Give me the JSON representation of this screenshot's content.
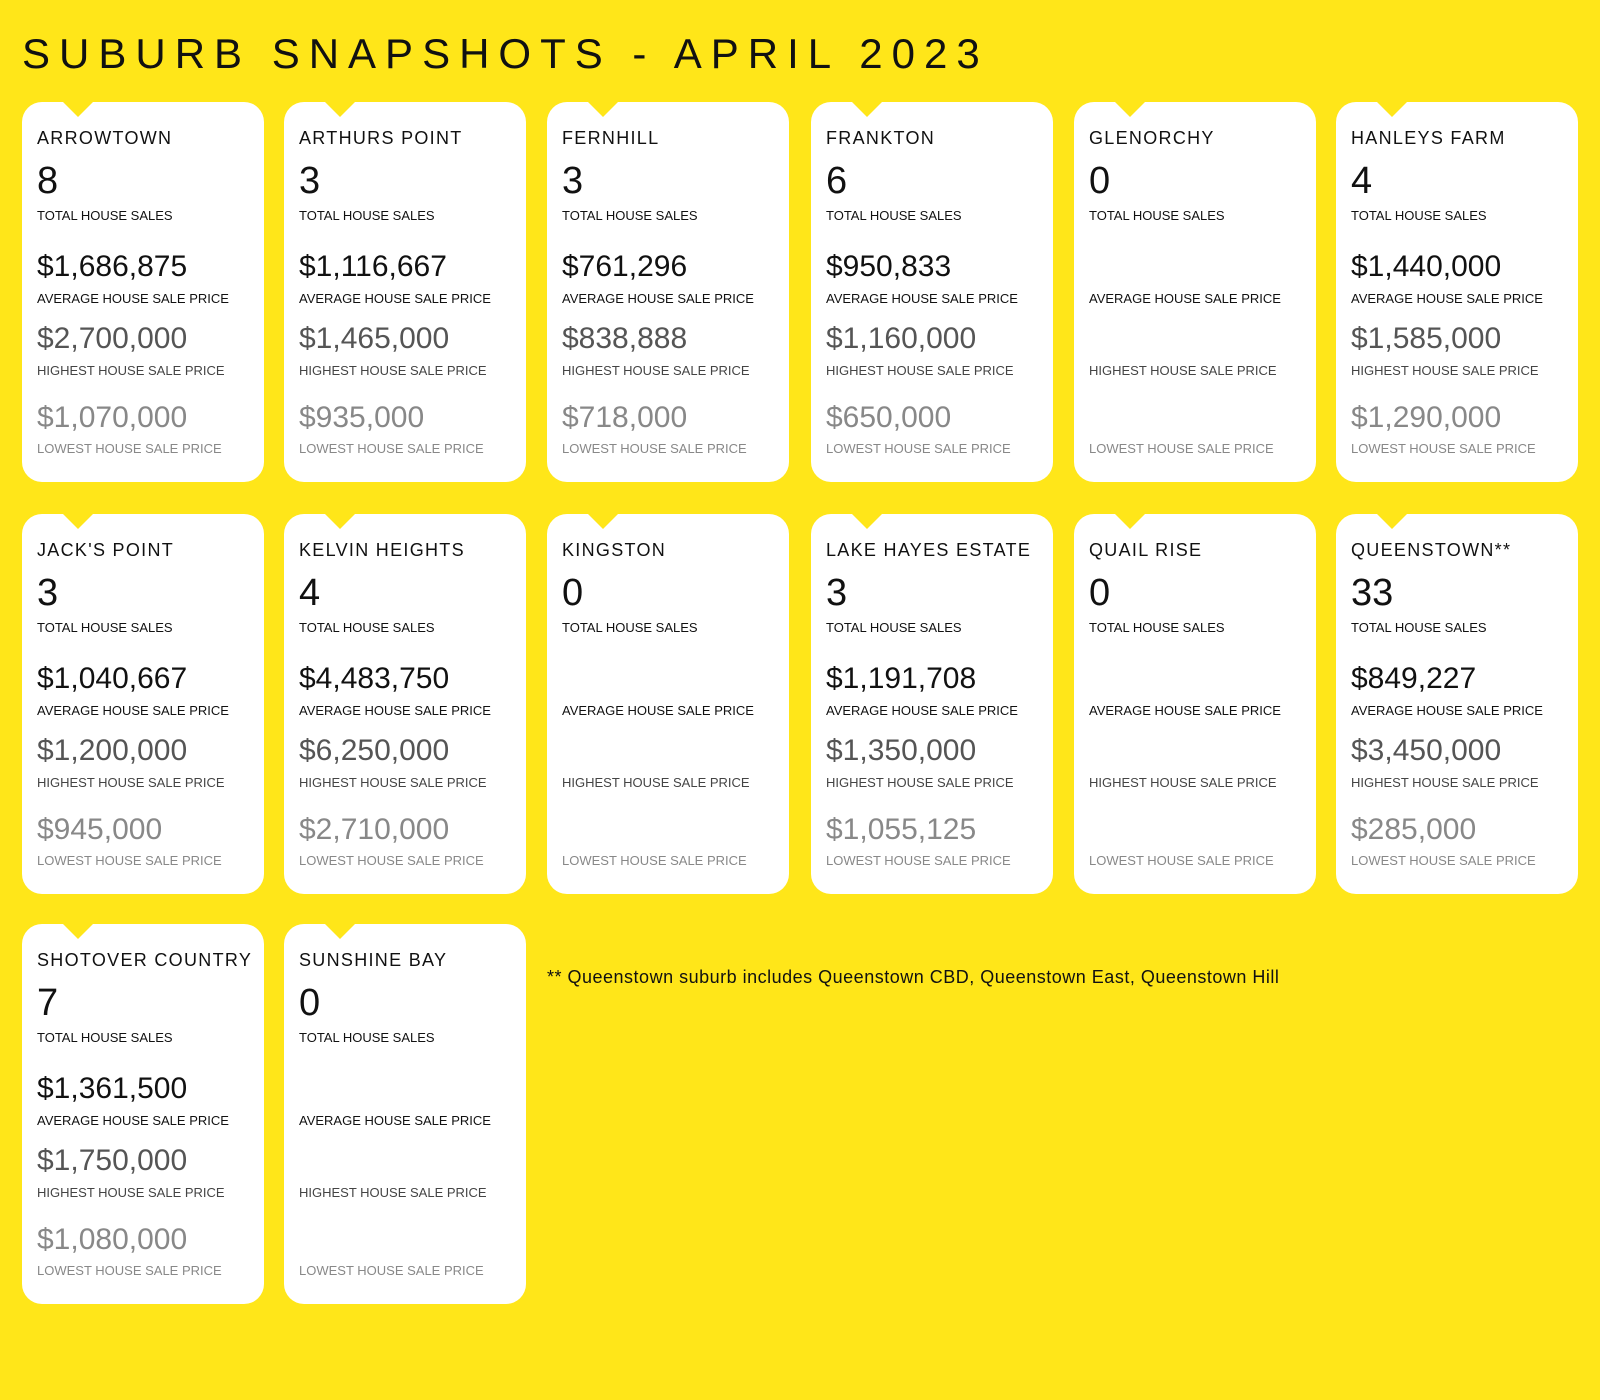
{
  "title": "SUBURB SNAPSHOTS - APRIL 2023",
  "labels": {
    "total_sales": "TOTAL HOUSE SALES",
    "average_price": "AVERAGE HOUSE SALE PRICE",
    "highest_price": "HIGHEST HOUSE SALE PRICE",
    "lowest_price": "LOWEST HOUSE SALE PRICE"
  },
  "suburbs": [
    {
      "name": "ARROWTOWN",
      "sales": "8",
      "average": "$1,686,875",
      "highest": "$2,700,000",
      "lowest": "$1,070,000"
    },
    {
      "name": "ARTHURS POINT",
      "sales": "3",
      "average": "$1,116,667",
      "highest": "$1,465,000",
      "lowest": "$935,000"
    },
    {
      "name": "FERNHILL",
      "sales": "3",
      "average": "$761,296",
      "highest": "$838,888",
      "lowest": "$718,000"
    },
    {
      "name": "FRANKTON",
      "sales": "6",
      "average": "$950,833",
      "highest": "$1,160,000",
      "lowest": "$650,000"
    },
    {
      "name": "GLENORCHY",
      "sales": "0",
      "average": "",
      "highest": "",
      "lowest": ""
    },
    {
      "name": "HANLEYS FARM",
      "sales": "4",
      "average": "$1,440,000",
      "highest": "$1,585,000",
      "lowest": "$1,290,000"
    },
    {
      "name": "JACK'S POINT",
      "sales": "3",
      "average": "$1,040,667",
      "highest": "$1,200,000",
      "lowest": "$945,000"
    },
    {
      "name": "KELVIN HEIGHTS",
      "sales": "4",
      "average": "$4,483,750",
      "highest": "$6,250,000",
      "lowest": "$2,710,000"
    },
    {
      "name": "KINGSTON",
      "sales": "0",
      "average": "",
      "highest": "",
      "lowest": ""
    },
    {
      "name": "LAKE HAYES ESTATE",
      "sales": "3",
      "average": "$1,191,708",
      "highest": "$1,350,000",
      "lowest": "$1,055,125"
    },
    {
      "name": "QUAIL RISE",
      "sales": "0",
      "average": "",
      "highest": "",
      "lowest": ""
    },
    {
      "name": "QUEENSTOWN**",
      "sales": "33",
      "average": "$849,227",
      "highest": "$3,450,000",
      "lowest": "$285,000"
    },
    {
      "name": "SHOTOVER COUNTRY",
      "sales": "7",
      "average": "$1,361,500",
      "highest": "$1,750,000",
      "lowest": "$1,080,000"
    },
    {
      "name": "SUNSHINE BAY",
      "sales": "0",
      "average": "",
      "highest": "",
      "lowest": ""
    }
  ],
  "footnote": "** Queenstown suburb includes Queenstown CBD, Queenstown East, Queenstown Hill"
}
